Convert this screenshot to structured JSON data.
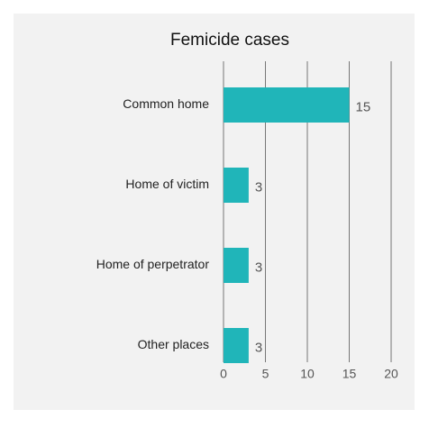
{
  "chart_data": {
    "type": "bar",
    "orientation": "horizontal",
    "title": "Femicide cases",
    "categories": [
      "Common home",
      "Home of victim",
      "Home of perpetrator",
      "Other places"
    ],
    "values": [
      15,
      3,
      3,
      3
    ],
    "color": "#20b5b9",
    "xlim": [
      0,
      20
    ],
    "xticks": [
      0,
      5,
      10,
      15,
      20
    ],
    "grid": true
  }
}
